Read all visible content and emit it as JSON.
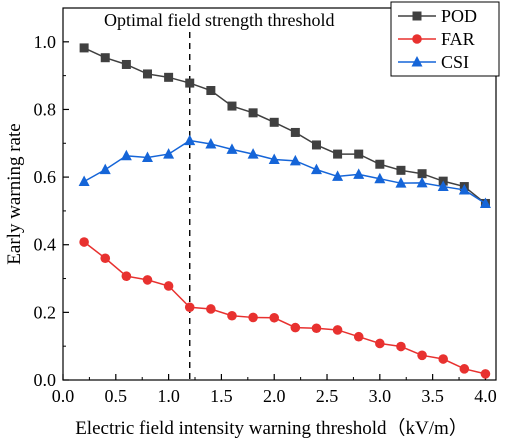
{
  "chart_data": {
    "type": "line",
    "xlabel": "Electric field intensity warning threshold（kV/m）",
    "ylabel": "Early warning rate",
    "xlim": [
      0.0,
      4.1
    ],
    "ylim": [
      0.0,
      1.1
    ],
    "xticks": [
      0.0,
      0.5,
      1.0,
      1.5,
      2.0,
      2.5,
      3.0,
      3.5,
      4.0
    ],
    "xtick_labels": [
      "0.0",
      "0.5",
      "1.0",
      "1.5",
      "2.0",
      "2.5",
      "3.0",
      "3.5",
      "4.0"
    ],
    "yticks": [
      0.0,
      0.2,
      0.4,
      0.6,
      0.8,
      1.0
    ],
    "ytick_labels": [
      "0.0",
      "0.2",
      "0.4",
      "0.6",
      "0.8",
      "1.0"
    ],
    "grid": false,
    "legend_position": "top-right",
    "x": [
      0.2,
      0.4,
      0.6,
      0.8,
      1.0,
      1.2,
      1.4,
      1.6,
      1.8,
      2.0,
      2.2,
      2.4,
      2.6,
      2.8,
      3.0,
      3.2,
      3.4,
      3.6,
      3.8,
      4.0
    ],
    "series": [
      {
        "name": "POD",
        "color": "#404040",
        "marker": "square",
        "values": [
          0.982,
          0.953,
          0.933,
          0.905,
          0.895,
          0.878,
          0.856,
          0.81,
          0.79,
          0.762,
          0.732,
          0.695,
          0.668,
          0.668,
          0.638,
          0.62,
          0.61,
          0.588,
          0.572,
          0.522
        ]
      },
      {
        "name": "FAR",
        "color": "#e8312f",
        "marker": "circle",
        "values": [
          0.408,
          0.36,
          0.307,
          0.296,
          0.278,
          0.215,
          0.21,
          0.19,
          0.185,
          0.184,
          0.155,
          0.153,
          0.148,
          0.128,
          0.108,
          0.099,
          0.073,
          0.062,
          0.033,
          0.018
        ]
      },
      {
        "name": "CSI",
        "color": "#1565d8",
        "marker": "triangle",
        "values": [
          0.587,
          0.622,
          0.663,
          0.658,
          0.668,
          0.708,
          0.698,
          0.682,
          0.668,
          0.652,
          0.648,
          0.622,
          0.602,
          0.608,
          0.595,
          0.582,
          0.583,
          0.572,
          0.562,
          0.522
        ]
      }
    ],
    "annotation": {
      "text": "Optimal field strength threshold",
      "x": 1.2,
      "line_style": "dashed"
    }
  }
}
